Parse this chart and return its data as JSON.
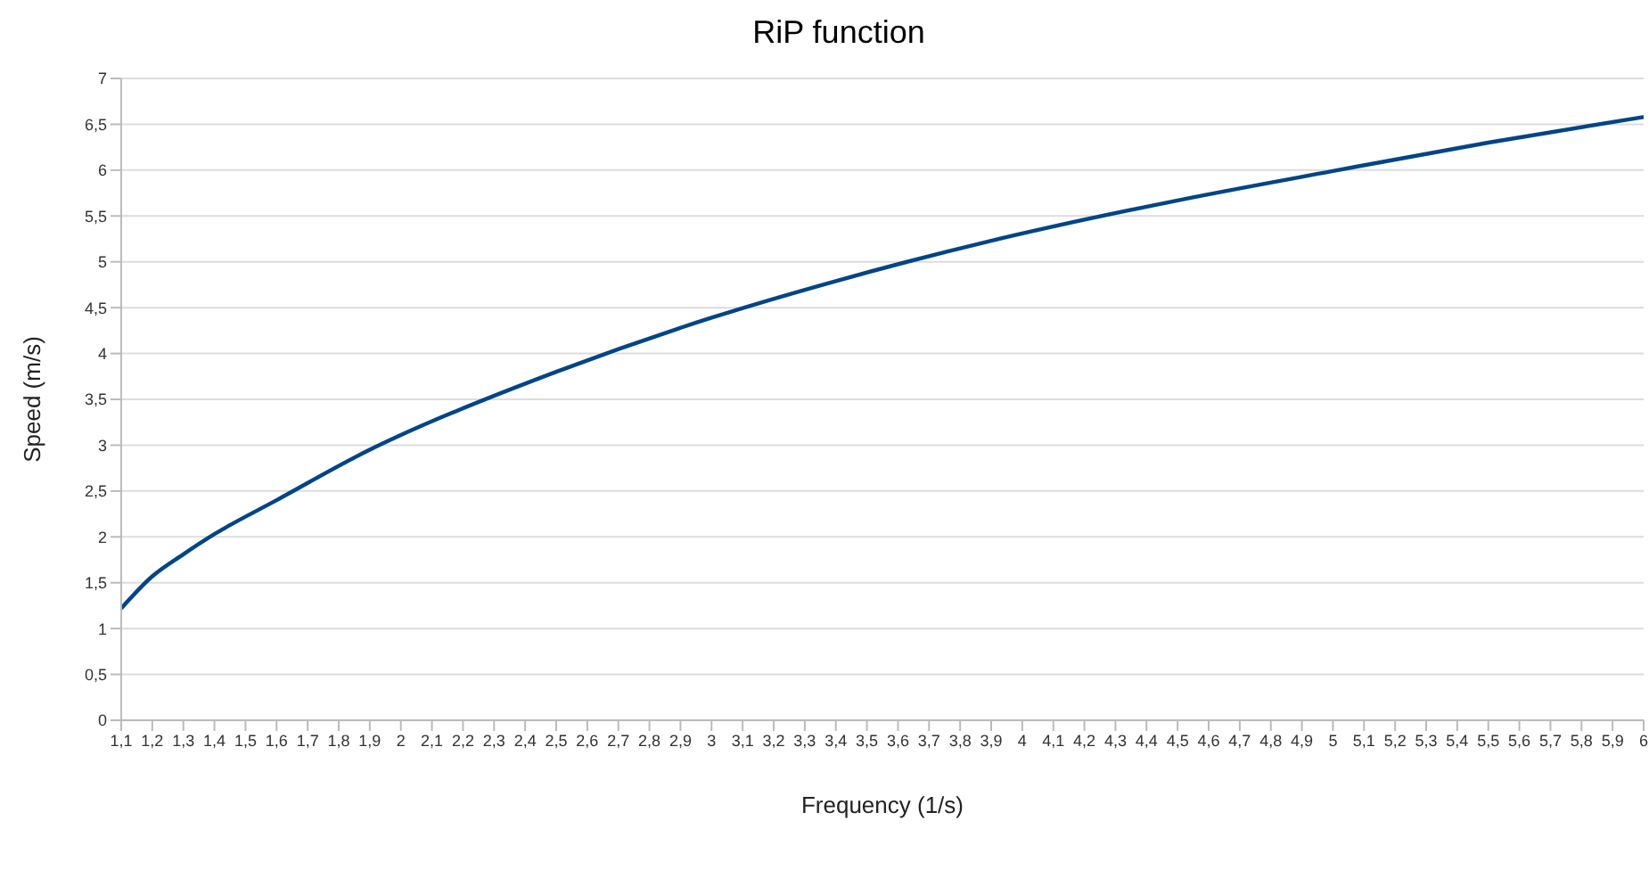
{
  "chart_data": {
    "type": "line",
    "title": "RiP function",
    "xlabel": "Frequency (1/s)",
    "ylabel": "Speed (m/s)",
    "x": [
      1.1,
      1.2,
      1.3,
      1.4,
      1.6,
      1.9,
      2,
      2.5,
      3,
      3.4,
      3.9,
      4.5,
      5,
      5.5,
      6
    ],
    "series": [
      {
        "color": "#004586",
        "values": [
          1.22,
          1.57,
          1.81,
          2.03,
          2.4,
          2.95,
          3.11,
          3.8,
          4.39,
          4.79,
          5.23,
          5.67,
          5.99,
          6.3,
          6.58
        ]
      }
    ],
    "xlim": [
      1.1,
      6
    ],
    "ylim": [
      0,
      7
    ],
    "xticks": [
      {
        "value": 1.1,
        "label": "1,1"
      },
      {
        "value": 1.2,
        "label": "1,2"
      },
      {
        "value": 1.3,
        "label": "1,3"
      },
      {
        "value": 1.4,
        "label": "1,4"
      },
      {
        "value": 1.5,
        "label": "1,5"
      },
      {
        "value": 1.6,
        "label": "1,6"
      },
      {
        "value": 1.7,
        "label": "1,7"
      },
      {
        "value": 1.8,
        "label": "1,8"
      },
      {
        "value": 1.9,
        "label": "1,9"
      },
      2,
      {
        "value": 2.1,
        "label": "2,1"
      },
      {
        "value": 2.2,
        "label": "2,2"
      },
      {
        "value": 2.3,
        "label": "2,3"
      },
      {
        "value": 2.4,
        "label": "2,4"
      },
      {
        "value": 2.5,
        "label": "2,5"
      },
      {
        "value": 2.6,
        "label": "2,6"
      },
      {
        "value": 2.7,
        "label": "2,7"
      },
      {
        "value": 2.8,
        "label": "2,8"
      },
      {
        "value": 2.9,
        "label": "2,9"
      },
      3,
      {
        "value": 3.1,
        "label": "3,1"
      },
      {
        "value": 3.2,
        "label": "3,2"
      },
      {
        "value": 3.3,
        "label": "3,3"
      },
      {
        "value": 3.4,
        "label": "3,4"
      },
      {
        "value": 3.5,
        "label": "3,5"
      },
      {
        "value": 3.6,
        "label": "3,6"
      },
      {
        "value": 3.7,
        "label": "3,7"
      },
      {
        "value": 3.8,
        "label": "3,8"
      },
      {
        "value": 3.9,
        "label": "3,9"
      },
      4,
      {
        "value": 4.1,
        "label": "4,1"
      },
      {
        "value": 4.2,
        "label": "4,2"
      },
      {
        "value": 4.3,
        "label": "4,3"
      },
      {
        "value": 4.4,
        "label": "4,4"
      },
      {
        "value": 4.5,
        "label": "4,5"
      },
      {
        "value": 4.6,
        "label": "4,6"
      },
      {
        "value": 4.7,
        "label": "4,7"
      },
      {
        "value": 4.8,
        "label": "4,8"
      },
      {
        "value": 4.9,
        "label": "4,9"
      },
      5,
      {
        "value": 5.1,
        "label": "5,1"
      },
      {
        "value": 5.2,
        "label": "5,2"
      },
      {
        "value": 5.3,
        "label": "5,3"
      },
      {
        "value": 5.4,
        "label": "5,4"
      },
      {
        "value": 5.5,
        "label": "5,5"
      },
      {
        "value": 5.6,
        "label": "5,6"
      },
      {
        "value": 5.7,
        "label": "5,7"
      },
      {
        "value": 5.8,
        "label": "5,8"
      },
      {
        "value": 5.9,
        "label": "5,9"
      },
      6
    ],
    "yticks": [
      0,
      {
        "value": 0.5,
        "label": "0,5"
      },
      1,
      {
        "value": 1.5,
        "label": "1,5"
      },
      2,
      {
        "value": 2.5,
        "label": "2,5"
      },
      3,
      {
        "value": 3.5,
        "label": "3,5"
      },
      4,
      {
        "value": 4.5,
        "label": "4,5"
      },
      5,
      {
        "value": 5.5,
        "label": "5,5"
      },
      6,
      {
        "value": 6.5,
        "label": "6,5"
      },
      7
    ],
    "grid": "y",
    "marker": "none",
    "line_style": "solid"
  }
}
